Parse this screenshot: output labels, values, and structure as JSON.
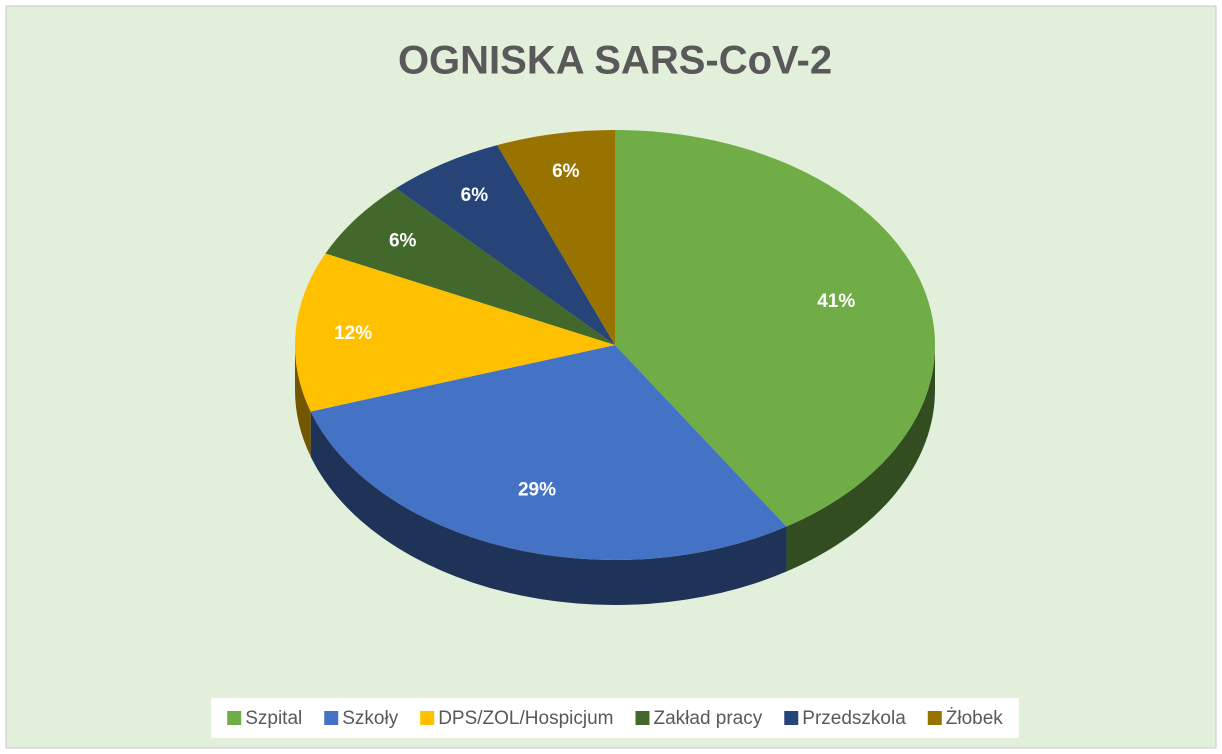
{
  "chart_data": {
    "type": "pie",
    "title": "OGNISKA SARS-CoV-2",
    "categories": [
      "Szpital",
      "Szkoły",
      "DPS/ZOL/Hospicjum",
      "Zakład pracy",
      "Przedszkola",
      "Żłobek"
    ],
    "values": [
      41,
      29,
      12,
      6,
      6,
      6
    ],
    "value_labels": [
      "41%",
      "29%",
      "12%",
      "6%",
      "6%",
      "6%"
    ],
    "colors": [
      "#70ad47",
      "#4472c4",
      "#ffc000",
      "#43682b",
      "#264478",
      "#997300"
    ],
    "legend": "bottom"
  }
}
